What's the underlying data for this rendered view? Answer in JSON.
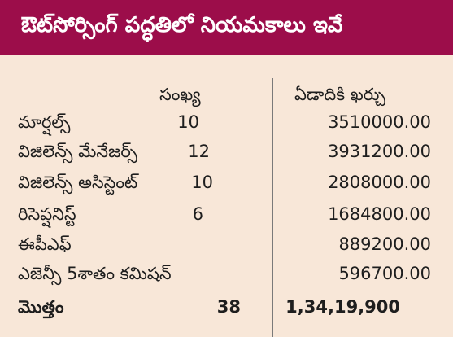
{
  "header": {
    "title": "ఔట్‌సోర్సింగ్ పద్ధతిలో నియమకాలు ఇవే"
  },
  "columns": {
    "count_label": "సంఖ్య",
    "cost_label": "ఏడాదికి ఖర్చు"
  },
  "rows": [
    {
      "name": "మార్షల్స్",
      "count": "10",
      "cost": "3510000.00"
    },
    {
      "name": "విజిలెన్స్ మేనేజర్స్",
      "count": "12",
      "cost": "3931200.00"
    },
    {
      "name": "విజిలెన్స్ అసిస్టెంట్",
      "count": "10",
      "cost": "2808000.00"
    },
    {
      "name": "రిసెప్షనిస్ట్",
      "count": "6",
      "cost": "1684800.00"
    },
    {
      "name": "ఈపీఎఫ్",
      "count": "",
      "cost": "889200.00"
    },
    {
      "name": "ఎజెన్సీ 5శాతం కమిషన్",
      "count": "",
      "cost": "596700.00"
    }
  ],
  "total": {
    "label": "మొత్తం",
    "count": "38",
    "cost": "1,34,19,900"
  }
}
